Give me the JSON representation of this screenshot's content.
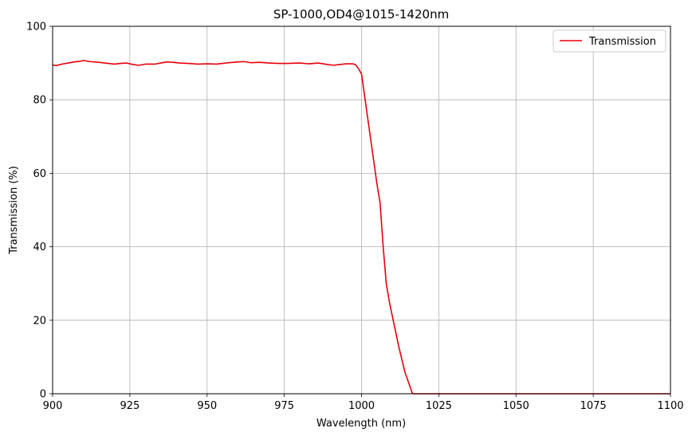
{
  "chart_data": {
    "type": "line",
    "title": "SP-1000,OD4@1015-1420nm",
    "xlabel": "Wavelength (nm)",
    "ylabel": "Transmission (%)",
    "xlim": [
      900,
      1100
    ],
    "ylim": [
      0,
      100
    ],
    "xticks": [
      900,
      925,
      950,
      975,
      1000,
      1025,
      1050,
      1075,
      1100
    ],
    "yticks": [
      0,
      20,
      40,
      60,
      80,
      100
    ],
    "grid": true,
    "legend_position": "top-right",
    "series": [
      {
        "name": "Transmission",
        "color": "#e8000b",
        "x": [
          900,
          901,
          903,
          905,
          907,
          909,
          910,
          912,
          915,
          918,
          920,
          922,
          924,
          926,
          928,
          930,
          933,
          935,
          937,
          939,
          941,
          944,
          947,
          950,
          953,
          955,
          957,
          960,
          962,
          964,
          967,
          970,
          973,
          976,
          980,
          983,
          986,
          989,
          991,
          993,
          995,
          997,
          998,
          999,
          1000,
          1001,
          1002,
          1003,
          1004,
          1005,
          1006,
          1007,
          1008,
          1009,
          1010,
          1012,
          1014,
          1016.5,
          1020,
          1030,
          1050,
          1075,
          1100
        ],
        "y": [
          89.5,
          89.3,
          89.7,
          90.0,
          90.3,
          90.5,
          90.7,
          90.4,
          90.2,
          89.9,
          89.7,
          89.9,
          90.0,
          89.6,
          89.4,
          89.7,
          89.7,
          90.0,
          90.3,
          90.2,
          90.0,
          89.9,
          89.7,
          89.8,
          89.7,
          89.9,
          90.1,
          90.3,
          90.4,
          90.1,
          90.2,
          90.0,
          89.9,
          89.9,
          90.0,
          89.8,
          90.0,
          89.6,
          89.4,
          89.6,
          89.8,
          89.8,
          89.6,
          88.5,
          87.0,
          81.0,
          75.0,
          69.0,
          63.0,
          57.0,
          52.0,
          40.0,
          30.0,
          25.0,
          21.0,
          13.0,
          6.0,
          0.0,
          0.0,
          0.0,
          0.0,
          0.0,
          0.0
        ]
      }
    ]
  }
}
